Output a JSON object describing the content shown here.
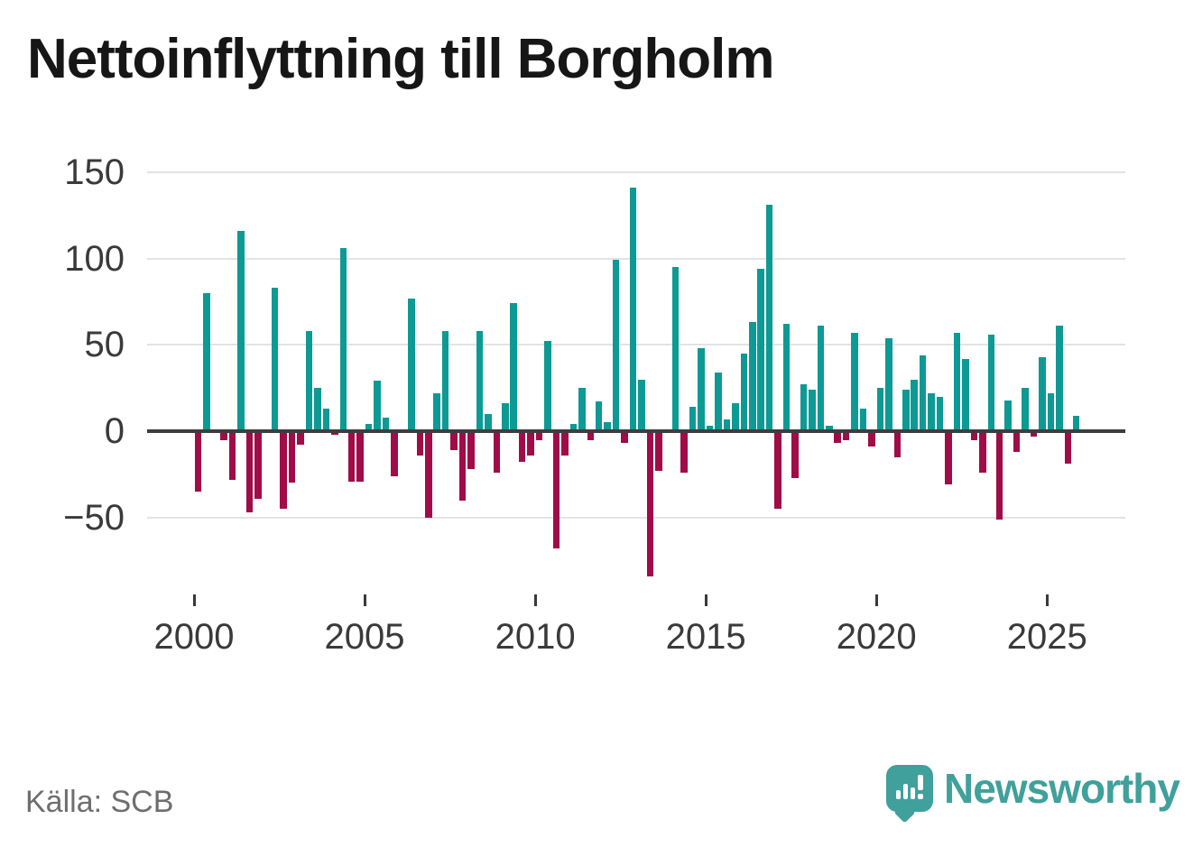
{
  "title": "Nettoinflyttning till Borgholm",
  "source": "Källa: SCB",
  "branding": {
    "logo_text": "Newsworthy",
    "logo_icon": "speech-bubble-bar-chart"
  },
  "colors": {
    "background": "#ffffff",
    "positive_bar": "#0d9a94",
    "negative_bar": "#a00c48",
    "grid": "#e3e3e3",
    "zero_line": "#3d3d3d",
    "axis_text": "#3a3a3a",
    "title_text": "#161616",
    "source_text": "#6e6e6e",
    "brand_teal": "#40a09b"
  },
  "chart_data": {
    "type": "bar",
    "title": "Nettoinflyttning till Borgholm",
    "xlabel": "",
    "ylabel": "",
    "grid": "horizontal",
    "legend": "none",
    "y_ticks": [
      150,
      100,
      50,
      0,
      -50
    ],
    "y_tick_labels": [
      "150",
      "100",
      "50",
      "0",
      "−50"
    ],
    "ylim": [
      -90,
      158
    ],
    "x_tick_years": [
      2000,
      2005,
      2010,
      2015,
      2020,
      2025
    ],
    "x_tick_labels": [
      "2000",
      "2005",
      "2010",
      "2015",
      "2020",
      "2025"
    ],
    "frequency": "quarterly",
    "start_period": "2000-Q1",
    "end_period": "2025-Q4",
    "values": [
      -35,
      80,
      0,
      -5,
      -28,
      116,
      -47,
      -39,
      0,
      83,
      -45,
      -30,
      -8,
      58,
      25,
      13,
      -2,
      106,
      -29,
      -29,
      4,
      29,
      8,
      -26,
      0,
      77,
      -14,
      -50,
      22,
      58,
      -11,
      -40,
      -22,
      58,
      10,
      -24,
      16,
      74,
      -18,
      -14,
      -5,
      52,
      -68,
      -14,
      4,
      25,
      -5,
      17,
      5,
      99,
      -7,
      141,
      30,
      -84,
      -23,
      0,
      95,
      -24,
      14,
      48,
      3,
      34,
      7,
      16,
      45,
      63,
      94,
      131,
      -45,
      62,
      -27,
      27,
      24,
      61,
      3,
      -7,
      -5,
      57,
      13,
      -9,
      25,
      54,
      -15,
      24,
      30,
      44,
      22,
      20,
      -31,
      57,
      42,
      -5,
      -24,
      56,
      -51,
      18,
      -12,
      25,
      -3,
      43,
      22,
      61,
      -19,
      9
    ]
  }
}
